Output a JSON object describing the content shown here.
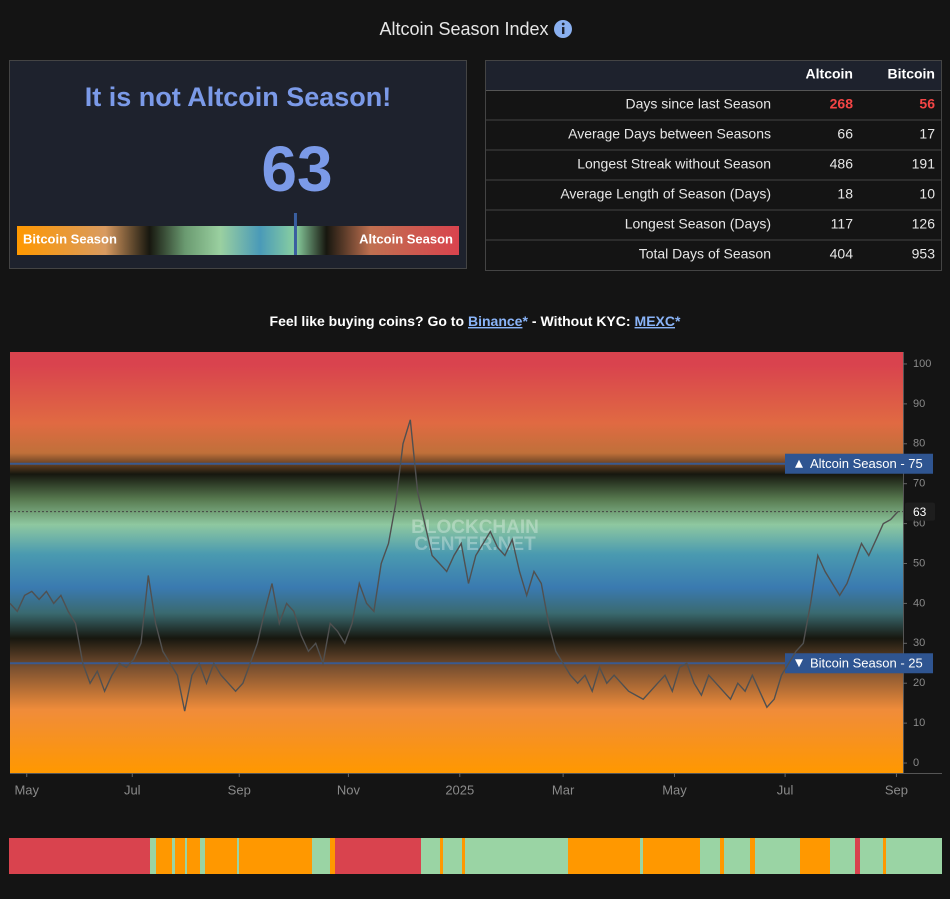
{
  "header": {
    "title": "Altcoin Season Index"
  },
  "status": {
    "message": "It is not Altcoin Season!",
    "index": 63,
    "gauge_lim": [
      0,
      100
    ],
    "gauge_labels": [
      "Bitcoin Season",
      "Altcoin Season"
    ]
  },
  "table": {
    "columns": [
      "Altcoin",
      "Bitcoin"
    ],
    "rows": [
      [
        "Days since last Season",
        268,
        56
      ],
      [
        "Average Days between Seasons",
        66,
        17
      ],
      [
        "Longest Streak without Season",
        486,
        191
      ],
      [
        "Average Length of Season (Days)",
        18,
        10
      ],
      [
        "Longest Season (Days)",
        117,
        126
      ],
      [
        "Total Days of Season",
        404,
        953
      ]
    ]
  },
  "promo": {
    "text": "Feel like buying coins? Go to",
    "link1": "Binance",
    "star": "*",
    "text2": "- Without KYC:",
    "link2": "MEXC"
  },
  "chart_data": {
    "type": "line",
    "color": "#505050",
    "values": [
      40,
      38,
      42,
      43,
      41,
      43,
      40,
      42,
      38,
      35,
      25,
      20,
      23,
      18,
      22,
      25,
      24,
      26,
      30,
      47,
      35,
      28,
      25,
      22,
      13,
      22,
      25,
      20,
      25,
      22,
      20,
      18,
      20,
      25,
      30,
      38,
      45,
      35,
      40,
      38,
      32,
      28,
      30,
      25,
      35,
      33,
      30,
      35,
      45,
      40,
      38,
      50,
      55,
      65,
      80,
      86,
      68,
      60,
      52,
      50,
      48,
      52,
      55,
      45,
      52,
      55,
      58,
      54,
      52,
      56,
      48,
      42,
      48,
      45,
      35,
      28,
      25,
      22,
      20,
      22,
      18,
      24,
      20,
      22,
      20,
      18,
      17,
      16,
      18,
      20,
      22,
      18,
      24,
      25,
      20,
      17,
      22,
      20,
      18,
      16,
      20,
      18,
      22,
      18,
      14,
      16,
      22,
      25,
      28,
      30,
      40,
      52,
      48,
      45,
      42,
      45,
      50,
      55,
      52,
      56,
      60,
      61,
      63
    ],
    "xlim": [
      0,
      122.7
    ],
    "xticks": [
      {
        "value": 2.3,
        "label": "May"
      },
      {
        "value": 16.8,
        "label": "Jul"
      },
      {
        "value": 31.5,
        "label": "Sep"
      },
      {
        "value": 46.5,
        "label": "Nov"
      },
      {
        "value": 61.8,
        "label": "2025"
      },
      {
        "value": 76,
        "label": "Mar"
      },
      {
        "value": 91.3,
        "label": "May"
      },
      {
        "value": 106.5,
        "label": "Jul"
      },
      {
        "value": 121.8,
        "label": "Sep"
      }
    ],
    "ylim": [
      -2.5,
      103
    ],
    "yticks": [
      0,
      10,
      20,
      30,
      40,
      50,
      60,
      70,
      80,
      90,
      100
    ],
    "annotations": [
      {
        "label": "Altcoin Season - 75",
        "value": 75,
        "symbol": "up"
      },
      {
        "label": "Bitcoin Season - 25",
        "value": 25,
        "symbol": "down"
      }
    ],
    "watermark": [
      "BLOCKCHAIN",
      "CENTER.NET"
    ]
  }
}
